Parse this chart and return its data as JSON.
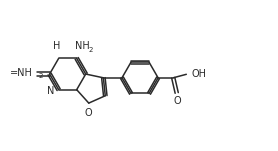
{
  "bg_color": "#ffffff",
  "line_color": "#2a2a2a",
  "text_color": "#2a2a2a",
  "figsize": [
    2.78,
    1.51
  ],
  "dpi": 100,
  "lw": 1.1,
  "font_size": 7.0,
  "font_size_sub": 5.0,
  "xlim": [
    0,
    9.5
  ],
  "ylim": [
    0,
    5.0
  ]
}
